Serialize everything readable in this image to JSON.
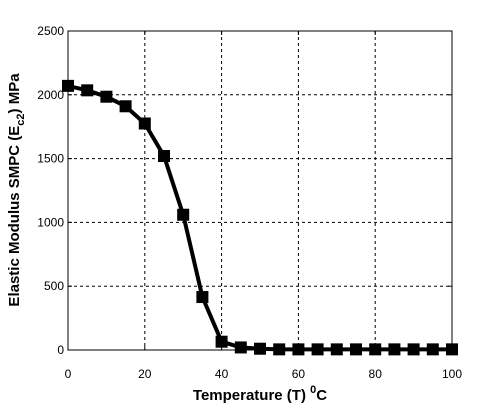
{
  "chart_data": {
    "type": "line",
    "title": "",
    "xlabel": "Temperature (T) ",
    "xlabel_sup": "0",
    "xlabel_suffix": "C",
    "ylabel": "Elastic Modulus SMPC (E",
    "ylabel_sub": "c2",
    "ylabel_suffix": ") MPa",
    "xlim": [
      0,
      100
    ],
    "ylim": [
      0,
      2500
    ],
    "xticks": [
      "0",
      "20",
      "40",
      "60",
      "80",
      "100"
    ],
    "yticks": [
      "0",
      "500",
      "1000",
      "1500",
      "2000",
      "2500"
    ],
    "grid": true,
    "marker": "square",
    "color": "#000000",
    "series": [
      {
        "x": [
          0,
          5,
          10,
          15,
          20,
          25,
          30,
          35,
          40,
          45,
          50,
          55,
          60,
          65,
          70,
          75,
          80,
          85,
          90,
          95,
          100
        ],
        "values": [
          2070,
          2035,
          1985,
          1910,
          1775,
          1520,
          1060,
          415,
          65,
          20,
          10,
          5,
          5,
          5,
          5,
          5,
          5,
          5,
          5,
          5,
          5
        ]
      }
    ]
  }
}
